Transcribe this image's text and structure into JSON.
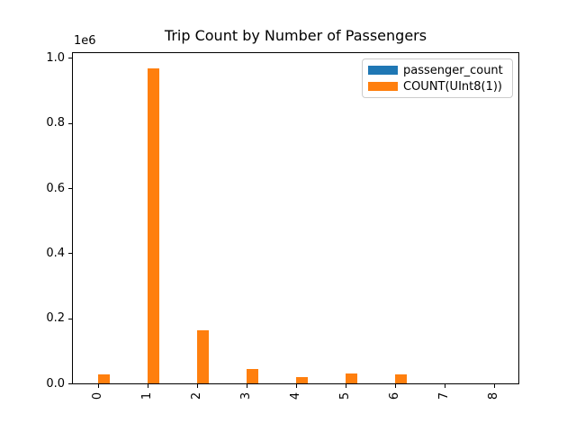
{
  "figure": {
    "background": "#ffffff"
  },
  "chart_data": {
    "type": "bar",
    "title": "Trip Count by Number of Passengers",
    "categories": [
      "0",
      "1",
      "2",
      "3",
      "4",
      "5",
      "6",
      "7",
      "8"
    ],
    "x_tick_rotation": 90,
    "series": [
      {
        "name": "passenger_count",
        "color": "#1f77b4",
        "values": [
          0,
          0,
          0,
          0,
          0,
          0,
          0,
          0,
          0
        ]
      },
      {
        "name": "COUNT(UInt8(1))",
        "color": "#ff7f0e",
        "values": [
          28000,
          967000,
          162000,
          45000,
          20000,
          31000,
          27000,
          0,
          0
        ]
      }
    ],
    "xlabel": "",
    "ylabel": "",
    "ylim": [
      0,
      1015000
    ],
    "y_offset_text": "1e6",
    "y_ticks": [
      {
        "value": 0,
        "label": "0.0"
      },
      {
        "value": 200000,
        "label": "0.2"
      },
      {
        "value": 400000,
        "label": "0.4"
      },
      {
        "value": 600000,
        "label": "0.6"
      },
      {
        "value": 800000,
        "label": "0.8"
      },
      {
        "value": 1000000,
        "label": "1.0"
      }
    ],
    "grid": false,
    "legend_position": "upper right",
    "axis_color": "#000000",
    "legend_border_color": "#cccccc"
  }
}
